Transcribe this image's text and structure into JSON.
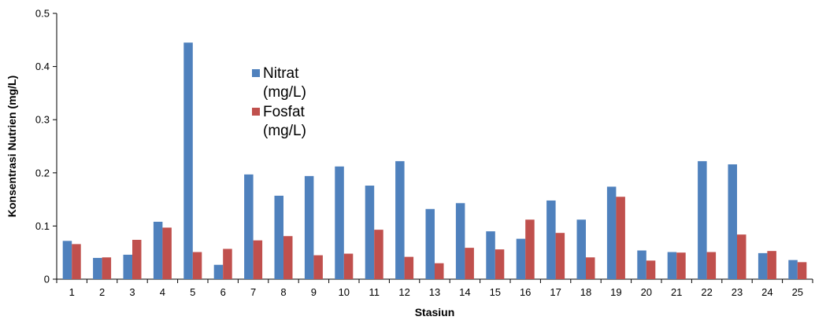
{
  "chart_data": {
    "type": "bar",
    "xlabel": "Stasiun",
    "ylabel": "Konsentrasi Nutrien (mg/L)",
    "ylim": [
      0,
      0.5
    ],
    "yticks": [
      "0",
      "0.1",
      "0.2",
      "0.3",
      "0.4",
      "0.5"
    ],
    "grid": false,
    "legend_position": "upper-middle",
    "categories": [
      "1",
      "2",
      "3",
      "4",
      "5",
      "6",
      "7",
      "8",
      "9",
      "10",
      "11",
      "12",
      "13",
      "14",
      "15",
      "16",
      "17",
      "18",
      "19",
      "20",
      "21",
      "22",
      "23",
      "24",
      "25"
    ],
    "series": [
      {
        "name_lines": [
          "Nitrat",
          "(mg/L)"
        ],
        "color": "#4F81BD",
        "values": [
          0.072,
          0.04,
          0.046,
          0.108,
          0.445,
          0.027,
          0.197,
          0.157,
          0.194,
          0.212,
          0.176,
          0.222,
          0.132,
          0.143,
          0.09,
          0.076,
          0.148,
          0.112,
          0.174,
          0.054,
          0.051,
          0.222,
          0.216,
          0.049,
          0.036
        ]
      },
      {
        "name_lines": [
          "Fosfat",
          "(mg/L)"
        ],
        "color": "#C0504D",
        "values": [
          0.066,
          0.041,
          0.074,
          0.097,
          0.051,
          0.057,
          0.073,
          0.081,
          0.045,
          0.048,
          0.093,
          0.042,
          0.03,
          0.059,
          0.056,
          0.112,
          0.087,
          0.041,
          0.155,
          0.035,
          0.05,
          0.051,
          0.084,
          0.053,
          0.032
        ]
      }
    ]
  }
}
